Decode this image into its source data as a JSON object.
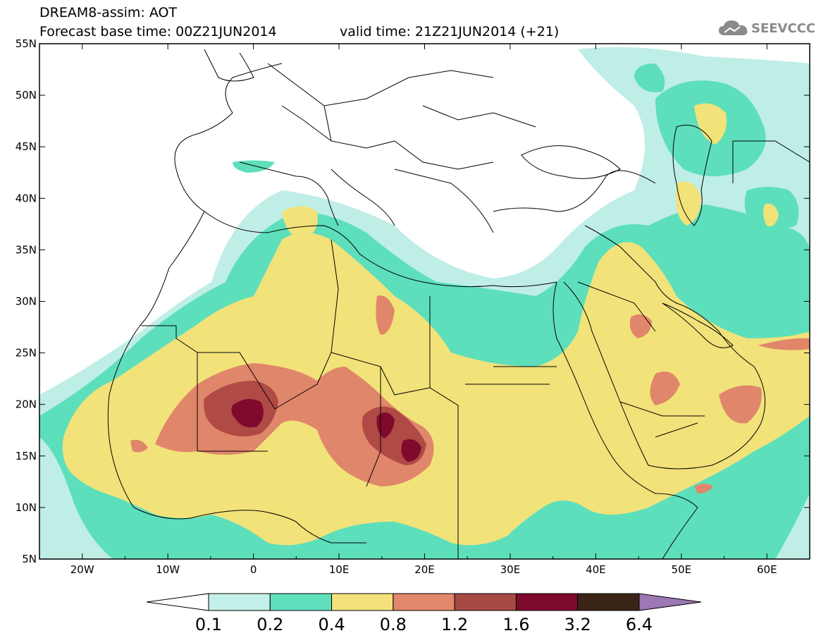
{
  "header": {
    "title": "DREAM8-assim: AOT",
    "base_time": "Forecast base time: 00Z21JUN2014",
    "valid_time": "valid time: 21Z21JUN2014 (+21)"
  },
  "logo": {
    "text": "SEEVCCC",
    "icon": "cloud-icon"
  },
  "map": {
    "lon_range": [
      -25,
      65
    ],
    "lat_range": [
      5,
      55
    ],
    "lat_labels": [
      "55N",
      "50N",
      "45N",
      "40N",
      "35N",
      "30N",
      "25N",
      "20N",
      "15N",
      "10N",
      "5N"
    ],
    "lon_labels": [
      "20W",
      "10W",
      "0",
      "10E",
      "20E",
      "30E",
      "40E",
      "50E",
      "60E"
    ],
    "fields": [
      {
        "level": "0.1-0.2",
        "color": "#bfeee6"
      },
      {
        "level": "0.2-0.4",
        "color": "#5ddfbb"
      },
      {
        "level": "0.4-0.8",
        "color": "#f2e27a"
      },
      {
        "level": "0.8-1.2",
        "color": "#e0866a"
      },
      {
        "level": "1.2-1.6",
        "color": "#b04a45"
      },
      {
        "level": "1.6-3.2",
        "color": "#800a2e"
      }
    ]
  },
  "colorbar": {
    "labels": [
      "0.1",
      "0.2",
      "0.4",
      "0.8",
      "1.2",
      "1.6",
      "3.2",
      "6.4"
    ],
    "colors": [
      "#ffffff",
      "#c3f0e8",
      "#5fdfbc",
      "#f3e27c",
      "#e2876b",
      "#a84a44",
      "#7e0a2e",
      "#3a2416",
      "#9c78b4"
    ]
  }
}
